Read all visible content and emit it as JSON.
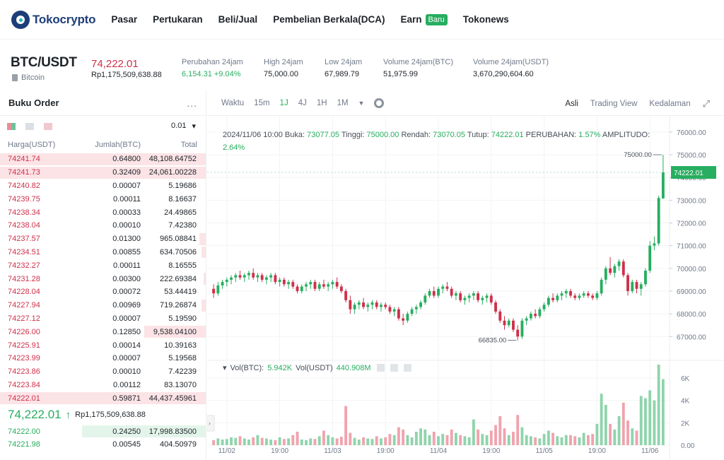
{
  "nav": {
    "logo_text_a": "Tokocrypto",
    "links": [
      "Pasar",
      "Pertukaran",
      "Beli/Jual",
      "Pembelian Berkala(DCA)",
      "Earn",
      "Tokonews"
    ],
    "earn_badge": "Baru"
  },
  "ticker": {
    "pair": "BTC/USDT",
    "coin": "Bitcoin",
    "last_price": "74,222.01",
    "last_price_idr": "Rp1,175,509,638.88",
    "change_label": "Perubahan 24jam",
    "change_value": "6,154.31 +9.04%",
    "high_label": "High 24jam",
    "high_value": "75,000.00",
    "low_label": "Low 24jam",
    "low_value": "67,989.79",
    "vol_btc_label": "Volume 24jam(BTC)",
    "vol_btc_value": "51,975.99",
    "vol_usdt_label": "Volume 24jam(USDT)",
    "vol_usdt_value": "3,670,290,604.60"
  },
  "orderbook": {
    "title": "Buku Order",
    "more": "...",
    "precision": "0.01",
    "col_price": "Harga(USDT)",
    "col_amount": "Jumlah(BTC)",
    "col_total": "Total",
    "asks": [
      {
        "price": "74241.74",
        "amount": "0.64800",
        "total": "48,108.64752",
        "depth": 1.0
      },
      {
        "price": "74241.73",
        "amount": "0.32409",
        "total": "24,061.00228",
        "depth": 1.0
      },
      {
        "price": "74240.82",
        "amount": "0.00007",
        "total": "5.19686",
        "depth": 0
      },
      {
        "price": "74239.75",
        "amount": "0.00011",
        "total": "8.16637",
        "depth": 0
      },
      {
        "price": "74238.34",
        "amount": "0.00033",
        "total": "24.49865",
        "depth": 0
      },
      {
        "price": "74238.04",
        "amount": "0.00010",
        "total": "7.42380",
        "depth": 0
      },
      {
        "price": "74237.57",
        "amount": "0.01300",
        "total": "965.08841",
        "depth": 0.03
      },
      {
        "price": "74234.51",
        "amount": "0.00855",
        "total": "634.70506",
        "depth": 0.02
      },
      {
        "price": "74232.27",
        "amount": "0.00011",
        "total": "8.16555",
        "depth": 0
      },
      {
        "price": "74231.28",
        "amount": "0.00300",
        "total": "222.69384",
        "depth": 0.01
      },
      {
        "price": "74228.04",
        "amount": "0.00072",
        "total": "53.44419",
        "depth": 0
      },
      {
        "price": "74227.94",
        "amount": "0.00969",
        "total": "719.26874",
        "depth": 0.02
      },
      {
        "price": "74227.12",
        "amount": "0.00007",
        "total": "5.19590",
        "depth": 0
      },
      {
        "price": "74226.00",
        "amount": "0.12850",
        "total": "9,538.04100",
        "depth": 0.3
      },
      {
        "price": "74225.91",
        "amount": "0.00014",
        "total": "10.39163",
        "depth": 0
      },
      {
        "price": "74223.99",
        "amount": "0.00007",
        "total": "5.19568",
        "depth": 0
      },
      {
        "price": "74223.86",
        "amount": "0.00010",
        "total": "7.42239",
        "depth": 0
      },
      {
        "price": "74223.84",
        "amount": "0.00112",
        "total": "83.13070",
        "depth": 0
      },
      {
        "price": "74222.01",
        "amount": "0.59871",
        "total": "44,437.45961",
        "depth": 1.0
      }
    ],
    "mid_price": "74,222.01",
    "mid_arrow": "↑",
    "mid_idr": "Rp1,175,509,638.88",
    "bids": [
      {
        "price": "74222.00",
        "amount": "0.24250",
        "total": "17,998.83500",
        "depth": 0.6
      },
      {
        "price": "74221.98",
        "amount": "0.00545",
        "total": "404.50979",
        "depth": 0
      }
    ]
  },
  "chart_toolbar": {
    "time_label": "Waktu",
    "intervals": [
      "15m",
      "1J",
      "4J",
      "1H",
      "1M"
    ],
    "active_interval": "1J",
    "views": [
      "Asli",
      "Trading View",
      "Kedalaman"
    ],
    "active_view": "Asli"
  },
  "chart_info": {
    "date": "2024/11/06 10:00",
    "open_label": "Buka:",
    "open": "73077.05",
    "high_label": "Tinggi:",
    "high": "75000.00",
    "low_label": "Rendah:",
    "low": "73070.05",
    "close_label": "Tutup:",
    "close": "74222.01",
    "change_label": "PERUBAHAN:",
    "change": "1.57%",
    "amp_label": "AMPLITUDO:",
    "amp": "2.64%"
  },
  "volume_info": {
    "btc_label": "Vol(BTC):",
    "btc": "5.942K",
    "usdt_label": "Vol(USDT)",
    "usdt": "440.908M"
  },
  "colors": {
    "up": "#27ae60",
    "down": "#cf304a",
    "up_light": "#8fd4ac",
    "down_light": "#f0a3ae"
  },
  "chart_data": {
    "type": "candlestick",
    "price_ticks": [
      76000,
      75000,
      74000,
      73000,
      72000,
      71000,
      70000,
      69000,
      68000,
      67000
    ],
    "price_tick_labels": [
      "76000.00",
      "75000.00",
      "74000.00",
      "73000.00",
      "72000.00",
      "71000.00",
      "70000.00",
      "69000.00",
      "68000.00",
      "67000.00"
    ],
    "ylim": [
      66200,
      76400
    ],
    "current_price_label": "74222.01",
    "current_price": 74222.01,
    "max_label": "75000.00",
    "max_value": 75000,
    "min_label": "66835.00",
    "min_value": 66835,
    "x_tick_labels": [
      "11/02",
      "19:00",
      "11/03",
      "19:00",
      "11/04",
      "19:00",
      "11/05",
      "19:00",
      "11/06"
    ],
    "volume_ticks": [
      6000,
      4000,
      2000,
      0
    ],
    "volume_tick_labels": [
      "6K",
      "4K",
      "2K",
      "0.00"
    ],
    "volume_ylim": [
      0,
      7200
    ],
    "candles": [
      [
        69100,
        69300,
        68700,
        68900
      ],
      [
        68900,
        69400,
        68800,
        69250
      ],
      [
        69250,
        69500,
        69100,
        69400
      ],
      [
        69400,
        69600,
        69200,
        69500
      ],
      [
        69500,
        69700,
        69300,
        69600
      ],
      [
        69600,
        69800,
        69400,
        69700
      ],
      [
        69700,
        69900,
        69500,
        69600
      ],
      [
        69600,
        69800,
        69400,
        69700
      ],
      [
        69700,
        69900,
        69500,
        69800
      ],
      [
        69800,
        70000,
        69500,
        69600
      ],
      [
        69600,
        69800,
        69400,
        69700
      ],
      [
        69700,
        69800,
        69400,
        69500
      ],
      [
        69500,
        69700,
        69300,
        69600
      ],
      [
        69600,
        69800,
        69400,
        69700
      ],
      [
        69700,
        69800,
        69300,
        69400
      ],
      [
        69400,
        69600,
        69200,
        69500
      ],
      [
        69500,
        69600,
        69200,
        69300
      ],
      [
        69300,
        69500,
        69100,
        69400
      ],
      [
        69400,
        69500,
        69100,
        69200
      ],
      [
        69200,
        69300,
        68900,
        69000
      ],
      [
        69000,
        69300,
        68900,
        69200
      ],
      [
        69200,
        69400,
        69000,
        69300
      ],
      [
        69300,
        69500,
        69100,
        69400
      ],
      [
        69400,
        69500,
        69000,
        69100
      ],
      [
        69100,
        69400,
        69000,
        69300
      ],
      [
        69300,
        69500,
        69100,
        69200
      ],
      [
        69200,
        69400,
        69000,
        69300
      ],
      [
        69300,
        69500,
        69100,
        69400
      ],
      [
        69400,
        69600,
        69100,
        69200
      ],
      [
        69200,
        69300,
        68900,
        69000
      ],
      [
        69000,
        69100,
        68500,
        68600
      ],
      [
        68600,
        68800,
        68000,
        68200
      ],
      [
        68200,
        68500,
        68000,
        68400
      ],
      [
        68400,
        68600,
        68200,
        68500
      ],
      [
        68500,
        68700,
        68200,
        68300
      ],
      [
        68300,
        68500,
        68100,
        68400
      ],
      [
        68400,
        68600,
        68200,
        68500
      ],
      [
        68500,
        68600,
        68200,
        68300
      ],
      [
        68300,
        68500,
        68100,
        68400
      ],
      [
        68400,
        68500,
        68200,
        68300
      ],
      [
        68300,
        68400,
        68000,
        68100
      ],
      [
        68100,
        68300,
        67900,
        68200
      ],
      [
        68200,
        68300,
        67700,
        67800
      ],
      [
        67800,
        68000,
        67500,
        67700
      ],
      [
        67700,
        68100,
        67600,
        68000
      ],
      [
        68000,
        68300,
        67900,
        68200
      ],
      [
        68200,
        68400,
        68000,
        68300
      ],
      [
        68300,
        68600,
        68200,
        68500
      ],
      [
        68500,
        68900,
        68400,
        68800
      ],
      [
        68800,
        69100,
        68700,
        69000
      ],
      [
        69000,
        69200,
        68700,
        68800
      ],
      [
        68800,
        69200,
        68700,
        69100
      ],
      [
        69100,
        69300,
        68900,
        69200
      ],
      [
        69200,
        69400,
        69000,
        69100
      ],
      [
        69100,
        69200,
        68700,
        68800
      ],
      [
        68800,
        69000,
        68600,
        68900
      ],
      [
        68900,
        69000,
        68500,
        68600
      ],
      [
        68600,
        68800,
        68400,
        68700
      ],
      [
        68700,
        68900,
        68500,
        68800
      ],
      [
        68800,
        69000,
        68600,
        68900
      ],
      [
        68900,
        69000,
        68500,
        68600
      ],
      [
        68600,
        68800,
        68400,
        68700
      ],
      [
        68700,
        68900,
        68500,
        68800
      ],
      [
        68800,
        68900,
        68400,
        68500
      ],
      [
        68500,
        68600,
        68000,
        68100
      ],
      [
        68100,
        68200,
        67600,
        67700
      ],
      [
        67700,
        67900,
        67300,
        67500
      ],
      [
        67500,
        67800,
        67400,
        67700
      ],
      [
        67700,
        67800,
        67200,
        67300
      ],
      [
        67300,
        67500,
        66835,
        67000
      ],
      [
        67000,
        67800,
        66900,
        67700
      ],
      [
        67700,
        67900,
        67500,
        67800
      ],
      [
        67800,
        68100,
        67700,
        68000
      ],
      [
        68000,
        68200,
        67800,
        67900
      ],
      [
        67900,
        68300,
        67800,
        68200
      ],
      [
        68200,
        68500,
        68100,
        68400
      ],
      [
        68400,
        68800,
        68300,
        68700
      ],
      [
        68700,
        68900,
        68500,
        68600
      ],
      [
        68600,
        68900,
        68500,
        68800
      ],
      [
        68800,
        69000,
        68600,
        68900
      ],
      [
        68900,
        69100,
        68700,
        69000
      ],
      [
        69000,
        69100,
        68700,
        68800
      ],
      [
        68800,
        68900,
        68600,
        68700
      ],
      [
        68700,
        68900,
        68600,
        68800
      ],
      [
        68800,
        69000,
        68700,
        68900
      ],
      [
        68900,
        69000,
        68700,
        68800
      ],
      [
        68800,
        68900,
        68600,
        68700
      ],
      [
        68700,
        69000,
        68600,
        68900
      ],
      [
        68900,
        69600,
        68800,
        69500
      ],
      [
        69500,
        70100,
        69300,
        70000
      ],
      [
        70000,
        70500,
        69700,
        69800
      ],
      [
        69800,
        70200,
        69600,
        70100
      ],
      [
        70100,
        70400,
        69900,
        70300
      ],
      [
        70300,
        70400,
        69600,
        69700
      ],
      [
        69700,
        69800,
        68800,
        69000
      ],
      [
        69000,
        69500,
        68900,
        69400
      ],
      [
        69400,
        69500,
        68900,
        69100
      ],
      [
        69100,
        69400,
        68800,
        69300
      ],
      [
        69300,
        70000,
        69200,
        69900
      ],
      [
        69900,
        71200,
        69800,
        71000
      ],
      [
        71000,
        71400,
        70800,
        71100
      ],
      [
        71100,
        73200,
        71000,
        73100
      ],
      [
        73077.05,
        75000,
        73070.05,
        74222.01
      ]
    ],
    "volumes": [
      450,
      600,
      500,
      550,
      700,
      650,
      800,
      600,
      500,
      700,
      900,
      650,
      600,
      500,
      450,
      700,
      550,
      600,
      900,
      1200,
      500,
      450,
      600,
      550,
      800,
      1300,
      900,
      700,
      600,
      750,
      3500,
      1100,
      650,
      500,
      700,
      600,
      550,
      800,
      600,
      700,
      1000,
      900,
      1600,
      1400,
      900,
      700,
      1200,
      1500,
      1400,
      900,
      1200,
      800,
      1000,
      900,
      1400,
      1100,
      900,
      800,
      700,
      2300,
      1400,
      1000,
      900,
      1300,
      1800,
      2600,
      1500,
      900,
      1200,
      2700,
      1600,
      900,
      800,
      700,
      600,
      1000,
      1300,
      1100,
      800,
      700,
      900,
      900,
      800,
      700,
      1100,
      900,
      1000,
      1900,
      4600,
      3600,
      1900,
      1400,
      2600,
      3800,
      2200,
      1500,
      1300,
      4400,
      4200,
      4900,
      4000,
      7200,
      5900
    ]
  }
}
